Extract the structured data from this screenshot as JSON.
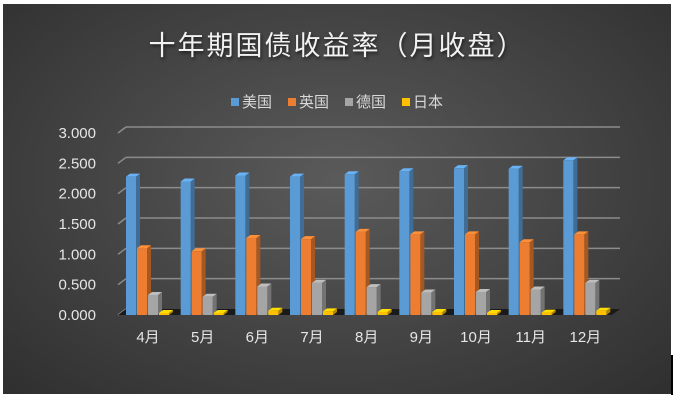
{
  "chart_data": {
    "type": "bar",
    "subtype": "3d-clustered-column",
    "title": "十年期国债收益率（月收盘）",
    "xlabel": "",
    "ylabel": "",
    "categories": [
      "4月",
      "5月",
      "6月",
      "7月",
      "8月",
      "9月",
      "10月",
      "11月",
      "12月"
    ],
    "series": [
      {
        "name": "美国",
        "color": "#5b9bd5",
        "values": [
          2.28,
          2.2,
          2.3,
          2.28,
          2.32,
          2.37,
          2.42,
          2.41,
          2.55
        ]
      },
      {
        "name": "英国",
        "color": "#ed7d31",
        "values": [
          1.1,
          1.05,
          1.27,
          1.25,
          1.37,
          1.33,
          1.33,
          1.2,
          1.33
        ]
      },
      {
        "name": "德国",
        "color": "#a5a5a5",
        "values": [
          0.33,
          0.3,
          0.47,
          0.53,
          0.46,
          0.37,
          0.38,
          0.42,
          0.53
        ]
      },
      {
        "name": "日本",
        "color": "#ffc000",
        "values": [
          0.02,
          0.02,
          0.07,
          0.06,
          0.05,
          0.05,
          0.03,
          0.04,
          0.07
        ]
      }
    ],
    "ylim": [
      0,
      3.0
    ],
    "yticks": [
      "0.000",
      "0.500",
      "1.000",
      "1.500",
      "2.000",
      "2.500",
      "3.000"
    ],
    "grid": true,
    "legend_position": "top"
  },
  "legend": {
    "items": [
      {
        "label": "美国",
        "color": "#5b9bd5"
      },
      {
        "label": "英国",
        "color": "#ed7d31"
      },
      {
        "label": "德国",
        "color": "#a5a5a5"
      },
      {
        "label": "日本",
        "color": "#ffc000"
      }
    ]
  }
}
